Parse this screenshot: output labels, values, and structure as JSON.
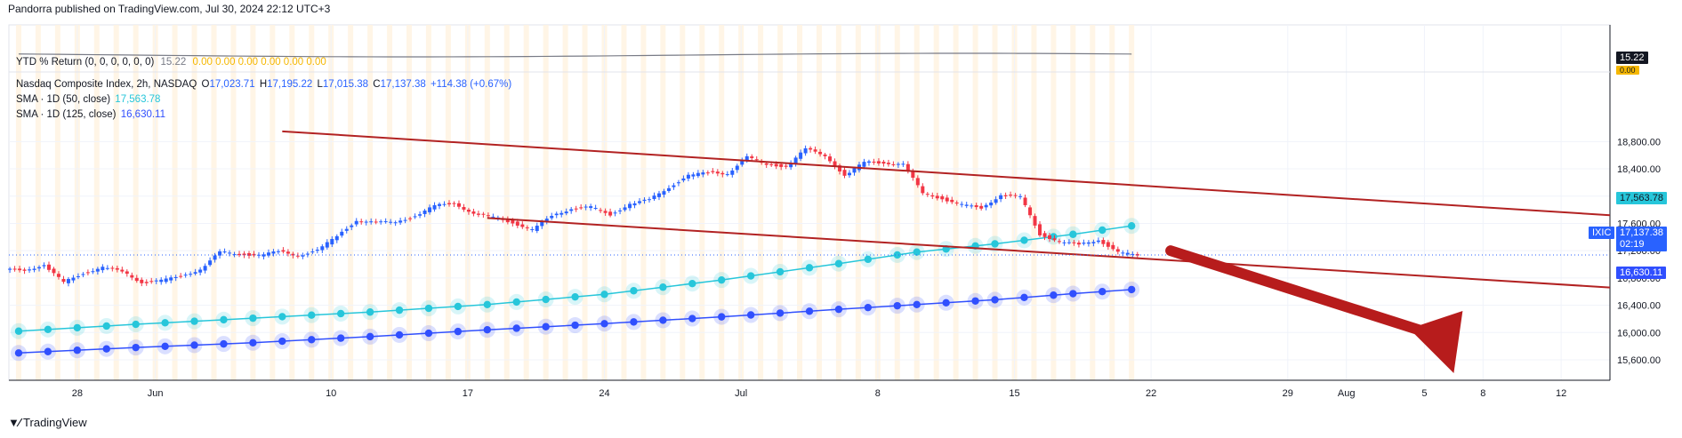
{
  "header": {
    "published": "Pandorra published on TradingView.com, Jul 30, 2024 22:12 UTC+3"
  },
  "footer": {
    "brand": "TradingView"
  },
  "ytd": {
    "label": "YTD % Return (0, 0, 0, 0, 0, 0)",
    "value": "15.22",
    "zeros": "0.00  0.00  0.00  0.00  0.00  0.00",
    "axis_value": "15.22",
    "axis_zero": "0.00",
    "line_color": "#787b86"
  },
  "legend": {
    "symbol": "Nasdaq Composite Index, 2h, NASDAQ",
    "o_label": "O",
    "o": "17,023.71",
    "h_label": "H",
    "h": "17,195.22",
    "l_label": "L",
    "l": "17,015.38",
    "c_label": "C",
    "c": "17,137.38",
    "change": "+114.38 (+0.67%)",
    "sma50_label": "SMA · 1D (50, close)",
    "sma50_value": "17,563.78",
    "sma125_label": "SMA · 1D (125, close)",
    "sma125_value": "16,630.11"
  },
  "price_tags": {
    "sma50": "17,563.78",
    "ixic_symbol": "IXIC",
    "price": "17,137.38",
    "countdown": "02:19",
    "sma125": "16,630.11"
  },
  "colors": {
    "up": "#2962ff",
    "down": "#f23645",
    "channel": "#b22222",
    "sma50": "#26c6da",
    "sma125": "#304ffe",
    "arrow": "#b71c1c",
    "session_band": "#fff3e0"
  },
  "chart_data": {
    "type": "candlestick",
    "ylim": [
      15300,
      19000
    ],
    "y_ticks": [
      15600,
      16000,
      16400,
      16800,
      17200,
      17600,
      18000,
      18400,
      18800
    ],
    "y_tick_labels": [
      "15,600.00",
      "16,000.00",
      "16,400.00",
      "16,800.00",
      "17,200.00",
      "17,600.00",
      "18,000.00",
      "18,400.00",
      "18,800.00"
    ],
    "x_ticks": [
      {
        "label": "28",
        "day": -3
      },
      {
        "label": "Jun",
        "day": 1
      },
      {
        "label": "10",
        "day": 10
      },
      {
        "label": "17",
        "day": 17
      },
      {
        "label": "24",
        "day": 24
      },
      {
        "label": "Jul",
        "day": 31
      },
      {
        "label": "8",
        "day": 38
      },
      {
        "label": "15",
        "day": 45
      },
      {
        "label": "22",
        "day": 52
      },
      {
        "label": "29",
        "day": 59
      },
      {
        "label": "Aug",
        "day": 62
      },
      {
        "label": "5",
        "day": 66
      },
      {
        "label": "8",
        "day": 69
      },
      {
        "label": "12",
        "day": 73
      }
    ],
    "x_range": [
      -6.5,
      75.5
    ],
    "daily_close": [
      {
        "day": -6,
        "c": 16920
      },
      {
        "day": -5,
        "c": 16980
      },
      {
        "day": -4,
        "c": 16740
      },
      {
        "day": -3,
        "c": 16870
      },
      {
        "day": -2,
        "c": 16950
      },
      {
        "day": -1,
        "c": 16900
      },
      {
        "day": 0,
        "c": 16730
      },
      {
        "day": 1,
        "c": 16760
      },
      {
        "day": 2,
        "c": 16830
      },
      {
        "day": 3,
        "c": 16920
      },
      {
        "day": 4,
        "c": 17180
      },
      {
        "day": 5,
        "c": 17150
      },
      {
        "day": 6,
        "c": 17130
      },
      {
        "day": 7,
        "c": 17190
      },
      {
        "day": 8,
        "c": 17130
      },
      {
        "day": 9,
        "c": 17200
      },
      {
        "day": 10,
        "c": 17420
      },
      {
        "day": 11,
        "c": 17640
      },
      {
        "day": 12,
        "c": 17610
      },
      {
        "day": 13,
        "c": 17630
      },
      {
        "day": 14,
        "c": 17700
      },
      {
        "day": 15,
        "c": 17860
      },
      {
        "day": 16,
        "c": 17900
      },
      {
        "day": 17,
        "c": 17730
      },
      {
        "day": 18,
        "c": 17700
      },
      {
        "day": 19,
        "c": 17610
      },
      {
        "day": 20,
        "c": 17500
      },
      {
        "day": 21,
        "c": 17720
      },
      {
        "day": 22,
        "c": 17810
      },
      {
        "day": 23,
        "c": 17840
      },
      {
        "day": 24,
        "c": 17730
      },
      {
        "day": 25,
        "c": 17880
      },
      {
        "day": 26,
        "c": 17950
      },
      {
        "day": 27,
        "c": 18130
      },
      {
        "day": 28,
        "c": 18300
      },
      {
        "day": 29,
        "c": 18350
      },
      {
        "day": 30,
        "c": 18330
      },
      {
        "day": 31,
        "c": 18570
      },
      {
        "day": 32,
        "c": 18470
      },
      {
        "day": 33,
        "c": 18430
      },
      {
        "day": 34,
        "c": 18690
      },
      {
        "day": 35,
        "c": 18600
      },
      {
        "day": 36,
        "c": 18290
      },
      {
        "day": 37,
        "c": 18500
      },
      {
        "day": 38,
        "c": 18490
      },
      {
        "day": 39,
        "c": 18460
      },
      {
        "day": 40,
        "c": 18050
      },
      {
        "day": 41,
        "c": 17960
      },
      {
        "day": 42,
        "c": 17870
      },
      {
        "day": 43,
        "c": 17830
      },
      {
        "day": 44,
        "c": 18010
      },
      {
        "day": 45,
        "c": 17990
      },
      {
        "day": 46,
        "c": 17440
      },
      {
        "day": 47,
        "c": 17330
      },
      {
        "day": 48,
        "c": 17290
      },
      {
        "day": 49,
        "c": 17360
      },
      {
        "day": 50,
        "c": 17170
      },
      {
        "day": 51,
        "c": 17137
      }
    ],
    "sma50": [
      {
        "day": -6,
        "v": 16020
      },
      {
        "day": 0,
        "v": 16120
      },
      {
        "day": 6,
        "v": 16210
      },
      {
        "day": 12,
        "v": 16300
      },
      {
        "day": 18,
        "v": 16410
      },
      {
        "day": 24,
        "v": 16560
      },
      {
        "day": 30,
        "v": 16770
      },
      {
        "day": 36,
        "v": 17010
      },
      {
        "day": 40,
        "v": 17180
      },
      {
        "day": 44,
        "v": 17300
      },
      {
        "day": 48,
        "v": 17440
      },
      {
        "day": 51,
        "v": 17563.78
      }
    ],
    "sma125": [
      {
        "day": -6,
        "v": 15700
      },
      {
        "day": 0,
        "v": 15780
      },
      {
        "day": 6,
        "v": 15850
      },
      {
        "day": 12,
        "v": 15940
      },
      {
        "day": 18,
        "v": 16040
      },
      {
        "day": 24,
        "v": 16130
      },
      {
        "day": 30,
        "v": 16230
      },
      {
        "day": 36,
        "v": 16340
      },
      {
        "day": 40,
        "v": 16410
      },
      {
        "day": 44,
        "v": 16480
      },
      {
        "day": 48,
        "v": 16570
      },
      {
        "day": 51,
        "v": 16630.11
      }
    ],
    "channel_upper": [
      {
        "day": 7.5,
        "v": 18950
      },
      {
        "day": 75.5,
        "v": 17720
      }
    ],
    "channel_lower": [
      {
        "day": 18,
        "v": 17680
      },
      {
        "day": 75.5,
        "v": 16660
      }
    ],
    "arrow": {
      "from": {
        "day": 53,
        "v": 17200
      },
      "to": {
        "day": 67.5,
        "v": 15300
      }
    }
  }
}
